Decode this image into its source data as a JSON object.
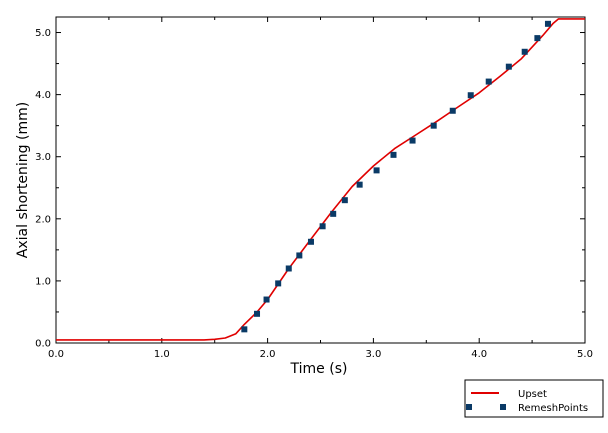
{
  "chart_data": {
    "type": "line",
    "title": "",
    "xlabel": "Time (s)",
    "ylabel": "Axial shortening (mm)",
    "xlim": [
      0,
      5
    ],
    "ylim": [
      0,
      5.25
    ],
    "x_ticks": [
      "0.0",
      "1.0",
      "2.0",
      "3.0",
      "4.0",
      "5.0"
    ],
    "y_ticks": [
      "0.0",
      "1.0",
      "2.0",
      "3.0",
      "4.0",
      "5.0"
    ],
    "grid": false,
    "legend_position": "bottom-right",
    "series": [
      {
        "name": "Upset",
        "style": "line",
        "color": "#e00000",
        "x": [
          0,
          1.4,
          1.5,
          1.6,
          1.7,
          1.78,
          1.9,
          2.0,
          2.2,
          2.4,
          2.6,
          2.8,
          3.0,
          3.2,
          3.4,
          3.6,
          3.8,
          4.0,
          4.2,
          4.4,
          4.6,
          4.7,
          4.75,
          5.0
        ],
        "y": [
          0.05,
          0.05,
          0.06,
          0.08,
          0.15,
          0.3,
          0.5,
          0.7,
          1.2,
          1.65,
          2.1,
          2.52,
          2.85,
          3.13,
          3.35,
          3.57,
          3.8,
          4.03,
          4.3,
          4.58,
          4.95,
          5.15,
          5.22,
          5.22
        ]
      },
      {
        "name": "RemeshPoints",
        "style": "markers",
        "color": "#0a3a66",
        "x": [
          1.78,
          1.9,
          1.99,
          2.1,
          2.2,
          2.3,
          2.41,
          2.52,
          2.62,
          2.73,
          2.87,
          3.03,
          3.19,
          3.37,
          3.57,
          3.75,
          3.92,
          4.09,
          4.28,
          4.43,
          4.55,
          4.65
        ],
        "y": [
          0.22,
          0.47,
          0.7,
          0.96,
          1.2,
          1.41,
          1.63,
          1.88,
          2.08,
          2.3,
          2.55,
          2.78,
          3.03,
          3.26,
          3.5,
          3.74,
          3.99,
          4.21,
          4.45,
          4.69,
          4.91,
          5.14
        ]
      }
    ]
  }
}
